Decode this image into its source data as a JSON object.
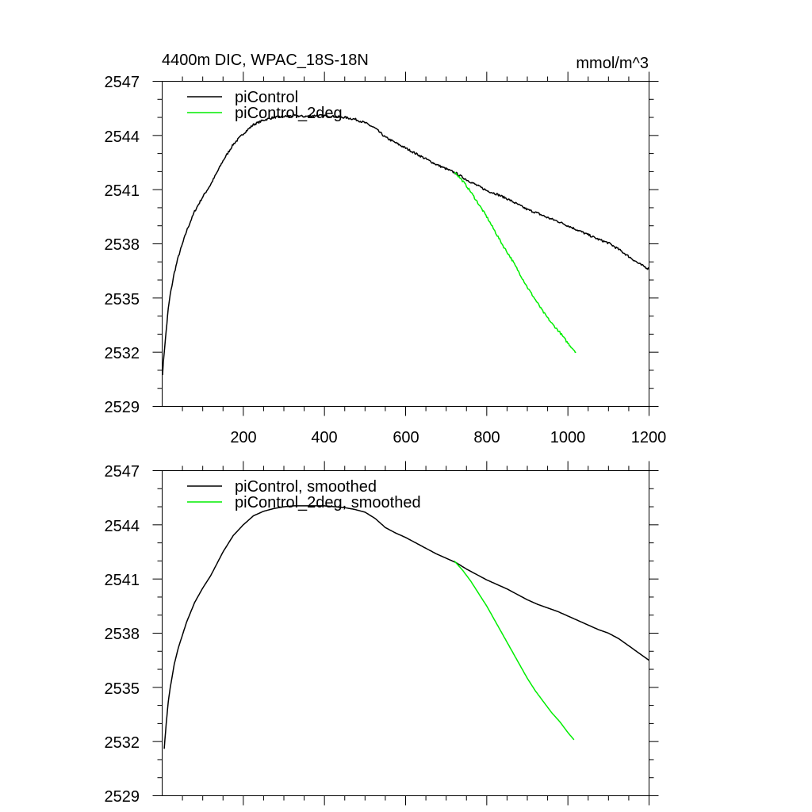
{
  "chart_data": [
    {
      "type": "line",
      "title_left": "4400m DIC, WPAC_18S-18N",
      "title_right": "mmol/m^3",
      "xlim": [
        0,
        1200
      ],
      "ylim": [
        2529,
        2547
      ],
      "xticks": [
        200,
        400,
        600,
        800,
        1000,
        1200
      ],
      "xtick_labels": [
        "200",
        "400",
        "600",
        "800",
        "1000",
        "1200"
      ],
      "yticks": [
        2529,
        2532,
        2535,
        2538,
        2541,
        2544,
        2547
      ],
      "ytick_labels": [
        "2529",
        "2532",
        "2535",
        "2538",
        "2541",
        "2544",
        "2547"
      ],
      "legend_position": "top-left",
      "series": [
        {
          "name": "piControl",
          "color": "#000000",
          "noise": 0.12,
          "x": [
            1,
            5,
            10,
            15,
            20,
            30,
            40,
            50,
            60,
            80,
            100,
            120,
            150,
            175,
            200,
            225,
            250,
            275,
            300,
            325,
            350,
            375,
            400,
            425,
            450,
            475,
            500,
            525,
            550,
            575,
            600,
            625,
            650,
            675,
            700,
            725,
            750,
            775,
            800,
            825,
            850,
            875,
            900,
            925,
            950,
            975,
            1000,
            1025,
            1050,
            1075,
            1100,
            1125,
            1150,
            1175,
            1200
          ],
          "y": [
            2530.8,
            2532.0,
            2533.2,
            2534.4,
            2535.2,
            2536.4,
            2537.3,
            2538.0,
            2538.7,
            2539.8,
            2540.6,
            2541.3,
            2542.6,
            2543.5,
            2544.1,
            2544.6,
            2544.85,
            2545.0,
            2545.05,
            2545.1,
            2545.05,
            2545.1,
            2545.1,
            2545.05,
            2545.0,
            2544.9,
            2544.7,
            2544.4,
            2543.9,
            2543.6,
            2543.3,
            2543.0,
            2542.7,
            2542.4,
            2542.15,
            2541.9,
            2541.55,
            2541.25,
            2540.95,
            2540.75,
            2540.5,
            2540.2,
            2539.9,
            2539.7,
            2539.45,
            2539.25,
            2539.0,
            2538.75,
            2538.5,
            2538.25,
            2538.05,
            2537.7,
            2537.3,
            2536.9,
            2536.6
          ]
        },
        {
          "name": "piControl_2deg",
          "color": "#00ee00",
          "noise": 0.12,
          "x": [
            720,
            740,
            760,
            780,
            800,
            820,
            840,
            860,
            880,
            900,
            920,
            940,
            960,
            980,
            1000,
            1020
          ],
          "y": [
            2542.0,
            2541.5,
            2540.9,
            2540.2,
            2539.5,
            2538.7,
            2537.9,
            2537.2,
            2536.4,
            2535.6,
            2534.9,
            2534.2,
            2533.6,
            2533.1,
            2532.5,
            2532.0
          ]
        }
      ]
    },
    {
      "type": "line",
      "xlim": [
        0,
        1200
      ],
      "ylim": [
        2529,
        2547
      ],
      "xticks": [
        200,
        400,
        600,
        800,
        1000,
        1200
      ],
      "yticks": [
        2529,
        2532,
        2535,
        2538,
        2541,
        2544,
        2547
      ],
      "ytick_labels": [
        "2529",
        "2532",
        "2535",
        "2538",
        "2541",
        "2544",
        "2547"
      ],
      "legend_position": "top-left",
      "series": [
        {
          "name": "piControl, smoothed",
          "color": "#000000",
          "noise": 0,
          "x": [
            5,
            10,
            15,
            20,
            30,
            40,
            50,
            60,
            80,
            100,
            120,
            150,
            175,
            200,
            225,
            250,
            275,
            300,
            325,
            350,
            375,
            400,
            425,
            450,
            475,
            500,
            525,
            550,
            575,
            600,
            625,
            650,
            675,
            700,
            725,
            750,
            775,
            800,
            825,
            850,
            875,
            900,
            925,
            950,
            975,
            1000,
            1025,
            1050,
            1075,
            1100,
            1125,
            1150,
            1175,
            1200
          ],
          "y": [
            2531.6,
            2533.0,
            2534.2,
            2535.0,
            2536.3,
            2537.2,
            2537.9,
            2538.6,
            2539.7,
            2540.5,
            2541.2,
            2542.5,
            2543.4,
            2544.0,
            2544.5,
            2544.75,
            2544.9,
            2545.0,
            2545.05,
            2545.05,
            2545.05,
            2545.05,
            2545.0,
            2544.95,
            2544.85,
            2544.7,
            2544.35,
            2543.85,
            2543.55,
            2543.3,
            2543.0,
            2542.7,
            2542.4,
            2542.15,
            2541.9,
            2541.55,
            2541.25,
            2540.95,
            2540.7,
            2540.45,
            2540.15,
            2539.85,
            2539.6,
            2539.4,
            2539.2,
            2538.95,
            2538.7,
            2538.45,
            2538.2,
            2538.0,
            2537.7,
            2537.3,
            2536.9,
            2536.5
          ]
        },
        {
          "name": "piControl_2deg, smoothed",
          "color": "#00ee00",
          "noise": 0,
          "x": [
            720,
            740,
            760,
            780,
            800,
            820,
            840,
            860,
            880,
            900,
            920,
            940,
            960,
            980,
            1000,
            1015
          ],
          "y": [
            2542.0,
            2541.5,
            2540.9,
            2540.2,
            2539.5,
            2538.7,
            2537.9,
            2537.1,
            2536.3,
            2535.5,
            2534.8,
            2534.2,
            2533.6,
            2533.1,
            2532.5,
            2532.1
          ]
        }
      ]
    }
  ]
}
